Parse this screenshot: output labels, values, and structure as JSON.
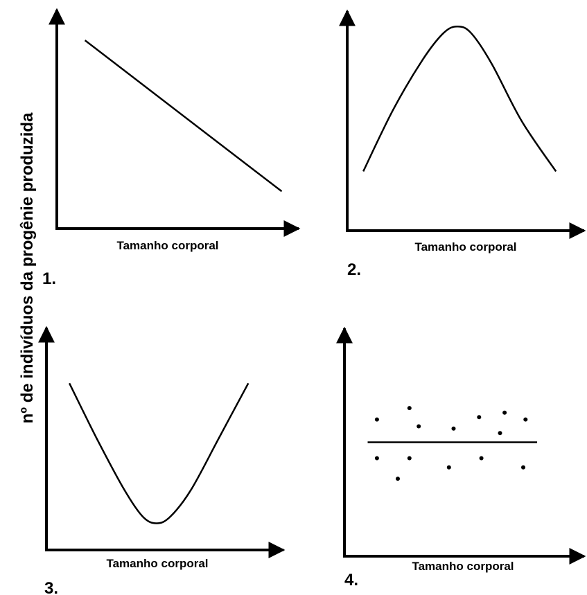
{
  "figure": {
    "ylabel": "nº de indivíduos da progênie produzida",
    "colors": {
      "ink": "#000000",
      "background": "#ffffff"
    }
  },
  "chart_data": [
    {
      "panel": "1.",
      "type": "line",
      "xlabel": "Tamanho corporal",
      "series": [
        {
          "x": [
            0.12,
            0.96
          ],
          "y": [
            0.86,
            0.17
          ]
        }
      ],
      "xlim": [
        0,
        1
      ],
      "ylim": [
        0,
        1
      ],
      "grid": false
    },
    {
      "panel": "2.",
      "type": "line",
      "xlabel": "Tamanho corporal",
      "series": [
        {
          "x": [
            0.07,
            0.2,
            0.33,
            0.42,
            0.48,
            0.54,
            0.63,
            0.76,
            0.91
          ],
          "y": [
            0.27,
            0.55,
            0.78,
            0.9,
            0.93,
            0.9,
            0.76,
            0.5,
            0.27
          ]
        }
      ],
      "xlim": [
        0,
        1
      ],
      "ylim": [
        0,
        1
      ],
      "grid": false
    },
    {
      "panel": "3.",
      "type": "line",
      "xlabel": "Tamanho corporal",
      "series": [
        {
          "x": [
            0.1,
            0.22,
            0.34,
            0.42,
            0.48,
            0.54,
            0.63,
            0.75,
            0.88
          ],
          "y": [
            0.75,
            0.5,
            0.27,
            0.15,
            0.12,
            0.15,
            0.27,
            0.5,
            0.75
          ]
        }
      ],
      "xlim": [
        0,
        1
      ],
      "ylim": [
        0,
        1
      ],
      "grid": false
    },
    {
      "panel": "4.",
      "type": "scatter",
      "xlabel": "Tamanho corporal",
      "series": [
        {
          "x": [
            0.14,
            0.28,
            0.32,
            0.47,
            0.58,
            0.67,
            0.69,
            0.78,
            0.14,
            0.23,
            0.28,
            0.45,
            0.59,
            0.77
          ],
          "y": [
            0.6,
            0.65,
            0.57,
            0.56,
            0.61,
            0.54,
            0.63,
            0.6,
            0.43,
            0.34,
            0.43,
            0.39,
            0.43,
            0.39
          ]
        }
      ],
      "line": {
        "x": [
          0.1,
          0.83
        ],
        "y": [
          0.5,
          0.5
        ]
      },
      "xlim": [
        0,
        1
      ],
      "ylim": [
        0,
        1
      ],
      "grid": false
    }
  ]
}
